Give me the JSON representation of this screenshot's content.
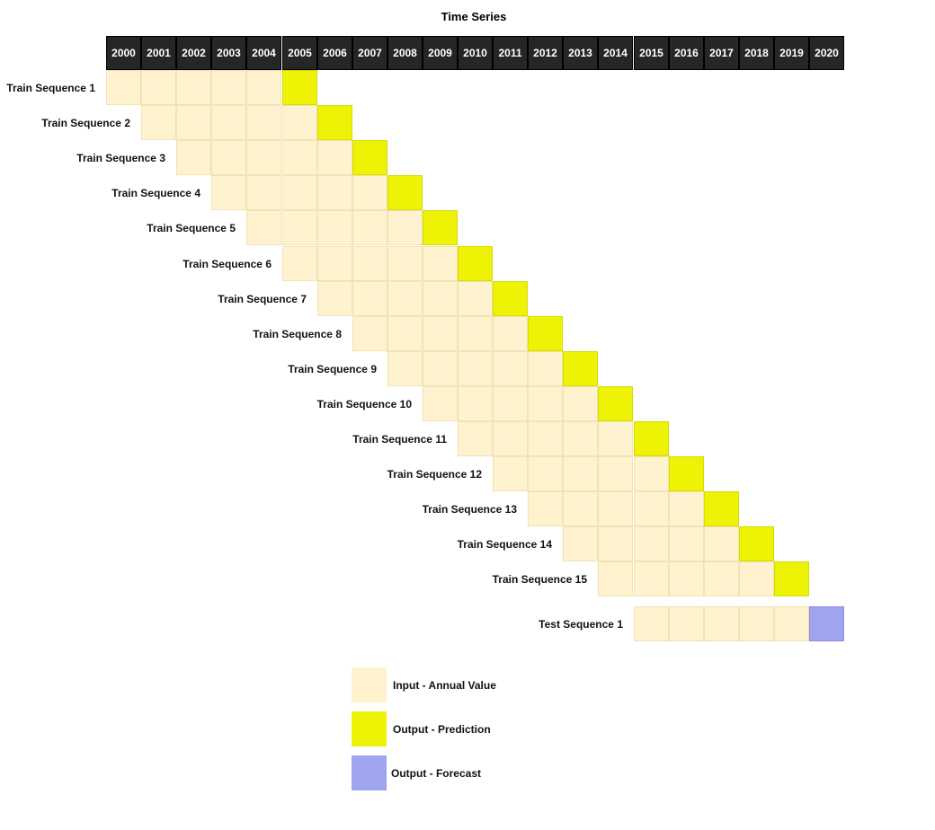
{
  "title": "Time Series",
  "years": [
    "2000",
    "2001",
    "2002",
    "2003",
    "2004",
    "2005",
    "2006",
    "2007",
    "2008",
    "2009",
    "2010",
    "2011",
    "2012",
    "2013",
    "2014",
    "2015",
    "2016",
    "2017",
    "2018",
    "2019",
    "2020"
  ],
  "sequences": [
    {
      "label": "Train Sequence 1",
      "input_years": [
        "2000",
        "2001",
        "2002",
        "2003",
        "2004"
      ],
      "output_year": "2005",
      "output_kind": "prediction"
    },
    {
      "label": "Train Sequence 2",
      "input_years": [
        "2001",
        "2002",
        "2003",
        "2004",
        "2005"
      ],
      "output_year": "2006",
      "output_kind": "prediction"
    },
    {
      "label": "Train Sequence 3",
      "input_years": [
        "2002",
        "2003",
        "2004",
        "2005",
        "2006"
      ],
      "output_year": "2007",
      "output_kind": "prediction"
    },
    {
      "label": "Train Sequence 4",
      "input_years": [
        "2003",
        "2004",
        "2005",
        "2006",
        "2007"
      ],
      "output_year": "2008",
      "output_kind": "prediction"
    },
    {
      "label": "Train Sequence 5",
      "input_years": [
        "2004",
        "2005",
        "2006",
        "2007",
        "2008"
      ],
      "output_year": "2009",
      "output_kind": "prediction"
    },
    {
      "label": "Train Sequence 6",
      "input_years": [
        "2005",
        "2006",
        "2007",
        "2008",
        "2009"
      ],
      "output_year": "2010",
      "output_kind": "prediction"
    },
    {
      "label": "Train Sequence 7",
      "input_years": [
        "2006",
        "2007",
        "2008",
        "2009",
        "2010"
      ],
      "output_year": "2011",
      "output_kind": "prediction"
    },
    {
      "label": "Train Sequence 8",
      "input_years": [
        "2007",
        "2008",
        "2009",
        "2010",
        "2011"
      ],
      "output_year": "2012",
      "output_kind": "prediction"
    },
    {
      "label": "Train Sequence 9",
      "input_years": [
        "2008",
        "2009",
        "2010",
        "2011",
        "2012"
      ],
      "output_year": "2013",
      "output_kind": "prediction"
    },
    {
      "label": "Train Sequence 10",
      "input_years": [
        "2009",
        "2010",
        "2011",
        "2012",
        "2013"
      ],
      "output_year": "2014",
      "output_kind": "prediction"
    },
    {
      "label": "Train Sequence 11",
      "input_years": [
        "2010",
        "2011",
        "2012",
        "2013",
        "2014"
      ],
      "output_year": "2015",
      "output_kind": "prediction"
    },
    {
      "label": "Train Sequence 12",
      "input_years": [
        "2011",
        "2012",
        "2013",
        "2014",
        "2015"
      ],
      "output_year": "2016",
      "output_kind": "prediction"
    },
    {
      "label": "Train Sequence 13",
      "input_years": [
        "2012",
        "2013",
        "2014",
        "2015",
        "2016"
      ],
      "output_year": "2017",
      "output_kind": "prediction"
    },
    {
      "label": "Train Sequence 14",
      "input_years": [
        "2013",
        "2014",
        "2015",
        "2016",
        "2017"
      ],
      "output_year": "2018",
      "output_kind": "prediction"
    },
    {
      "label": "Train Sequence 15",
      "input_years": [
        "2014",
        "2015",
        "2016",
        "2017",
        "2018"
      ],
      "output_year": "2019",
      "output_kind": "prediction"
    },
    {
      "label": "Test Sequence 1",
      "input_years": [
        "2015",
        "2016",
        "2017",
        "2018",
        "2019"
      ],
      "output_year": "2020",
      "output_kind": "forecast"
    }
  ],
  "legend": [
    {
      "key": "input",
      "label": "Input - Annual Value",
      "color": "#fef2cf"
    },
    {
      "key": "prediction",
      "label": "Output - Prediction",
      "color": "#eef306"
    },
    {
      "key": "forecast",
      "label": "Output - Forecast",
      "color": "#9ea4f0"
    }
  ],
  "colors": {
    "header_bg": "#262626",
    "header_text": "#ffffff"
  }
}
